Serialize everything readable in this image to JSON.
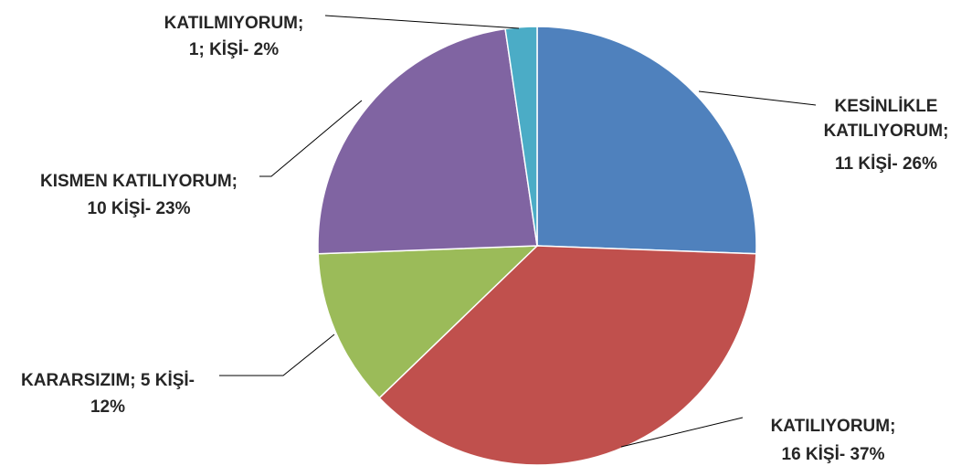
{
  "chart_data": {
    "type": "pie",
    "title": "",
    "slices": [
      {
        "label_lines": [
          "KESİNLİKLE",
          "KATILIYORUM;",
          "11 KİŞİ- 26%"
        ],
        "count": 11,
        "percent": 26,
        "color": "#4F81BD"
      },
      {
        "label_lines": [
          "KATILIYORUM;",
          "16 KİŞİ- 37%"
        ],
        "count": 16,
        "percent": 37,
        "color": "#C0504D"
      },
      {
        "label_lines": [
          "KARARSIZIM; 5 KİŞİ-",
          "12%"
        ],
        "count": 5,
        "percent": 12,
        "color": "#9BBB59"
      },
      {
        "label_lines": [
          "KISMEN KATILIYORUM;",
          "10 KİŞİ- 23%"
        ],
        "count": 10,
        "percent": 23,
        "color": "#8064A2"
      },
      {
        "label_lines": [
          "KATILMIYORUM;",
          "1; KİŞİ- 2%"
        ],
        "count": 1,
        "percent": 2,
        "color": "#4BACC6"
      }
    ]
  }
}
